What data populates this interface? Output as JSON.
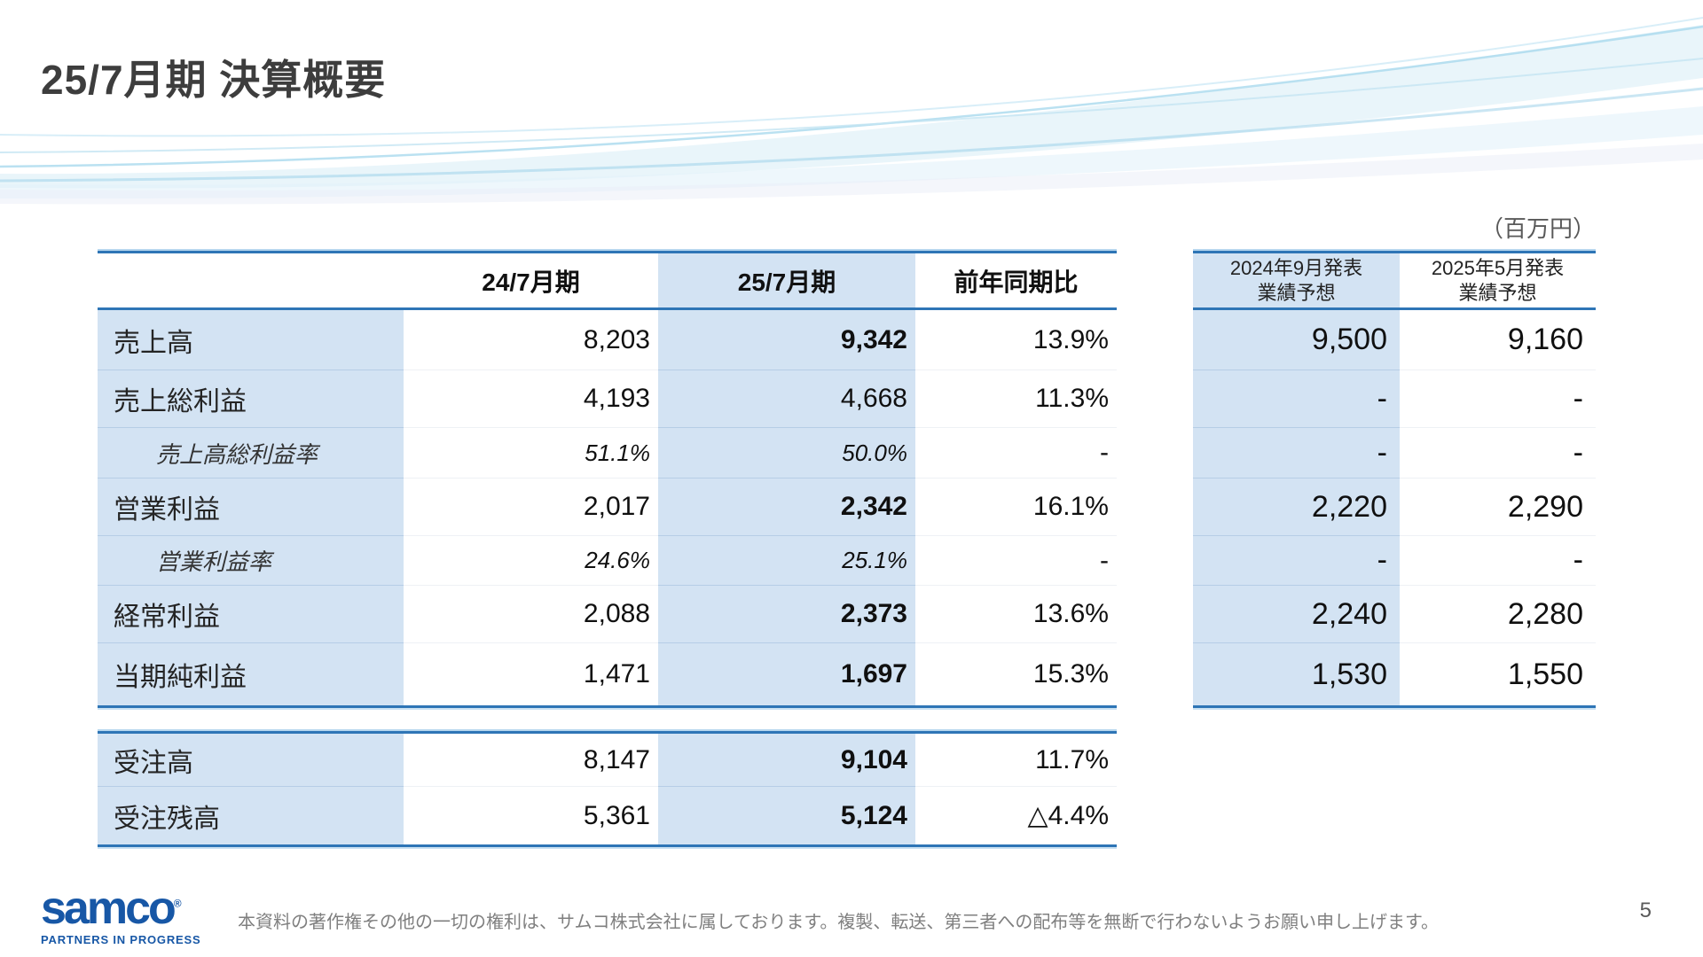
{
  "slide": {
    "title": "25/7月期 決算概要",
    "unit_label": "（百万円）",
    "footer_text": "本資料の著作権その他の一切の権利は、サムコ株式会社に属しております。複製、転送、第三者への配布等を無断で行わないようお願い申し上げます。",
    "page_number": "5",
    "logo": {
      "name": "samco",
      "registered_mark": "®",
      "tagline": "PARTNERS IN PROGRESS"
    }
  },
  "colors": {
    "accent_border_blue": "#2e75b6",
    "cell_highlight_blue": "#d3e3f3",
    "logo_blue": "#1757a6",
    "title_gray": "#3d3d3d",
    "footer_gray": "#7f7f7f"
  },
  "main_table": {
    "columns": [
      "",
      "24/7月期",
      "25/7月期",
      "前年同期比"
    ],
    "rows": [
      {
        "label": "売上高",
        "fy24": "8,203",
        "fy25": "9,342",
        "yoy": "13.9%",
        "style": "main",
        "emphasis": true
      },
      {
        "label": "売上総利益",
        "fy24": "4,193",
        "fy25": "4,668",
        "yoy": "11.3%",
        "style": "main",
        "emphasis": false
      },
      {
        "label": "売上高総利益率",
        "fy24": "51.1%",
        "fy25": "50.0%",
        "yoy": "-",
        "style": "ratio",
        "emphasis": false
      },
      {
        "label": "営業利益",
        "fy24": "2,017",
        "fy25": "2,342",
        "yoy": "16.1%",
        "style": "main",
        "emphasis": true
      },
      {
        "label": "営業利益率",
        "fy24": "24.6%",
        "fy25": "25.1%",
        "yoy": "-",
        "style": "ratio",
        "emphasis": false
      },
      {
        "label": "経常利益",
        "fy24": "2,088",
        "fy25": "2,373",
        "yoy": "13.6%",
        "style": "main",
        "emphasis": true
      },
      {
        "label": "当期純利益",
        "fy24": "1,471",
        "fy25": "1,697",
        "yoy": "15.3%",
        "style": "main",
        "emphasis": true
      }
    ]
  },
  "orders_table": {
    "rows": [
      {
        "label": "受注高",
        "fy24": "8,147",
        "fy25": "9,104",
        "yoy": "11.7%",
        "style": "main",
        "emphasis": true
      },
      {
        "label": "受注残高",
        "fy24": "5,361",
        "fy25": "5,124",
        "yoy": "△4.4%",
        "style": "main",
        "emphasis": true
      }
    ]
  },
  "forecast_table": {
    "columns": [
      {
        "line1": "2024年9月発表",
        "line2": "業績予想"
      },
      {
        "line1": "2025年5月発表",
        "line2": "業績予想"
      }
    ],
    "rows": [
      {
        "v1": "9,500",
        "v2": "9,160"
      },
      {
        "v1": "-",
        "v2": "-"
      },
      {
        "v1": "-",
        "v2": "-"
      },
      {
        "v1": "2,220",
        "v2": "2,290"
      },
      {
        "v1": "-",
        "v2": "-"
      },
      {
        "v1": "2,240",
        "v2": "2,280"
      },
      {
        "v1": "1,530",
        "v2": "1,550"
      }
    ]
  }
}
